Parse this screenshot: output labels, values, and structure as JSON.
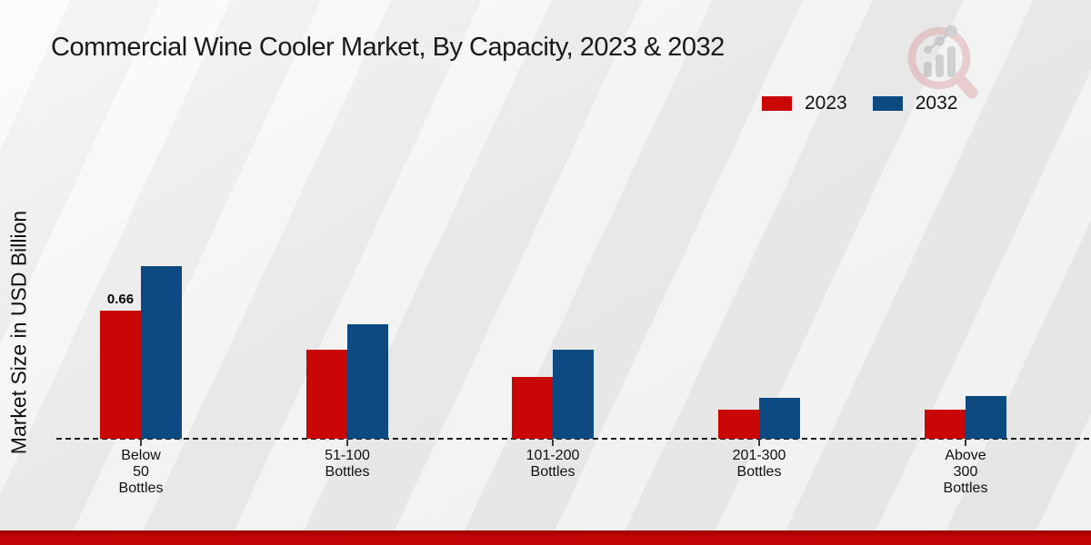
{
  "title": "Commercial Wine Cooler Market, By Capacity, 2023 & 2032",
  "ylabel": "Market Size in USD Billion",
  "colors": {
    "series_2023": "#c90707",
    "series_2032": "#0d4a82",
    "footer_bar": "#c40505",
    "baseline": "#1c1c1c"
  },
  "legend": {
    "position": "top-right",
    "items": [
      {
        "label": "2023",
        "color": "#c90707"
      },
      {
        "label": "2032",
        "color": "#0d4a82"
      }
    ]
  },
  "watermark_icon": "magnifier-bar-chart-logo",
  "chart_data": {
    "type": "bar",
    "title": "Commercial Wine Cooler Market, By Capacity, 2023 & 2032",
    "xlabel": "",
    "ylabel": "Market Size in USD Billion",
    "ylim": [
      0,
      1.0
    ],
    "grid": false,
    "baseline_style": "dashed",
    "legend_position": "top-right",
    "categories": [
      "Below\n50\nBottles",
      "51-100\nBottles",
      "101-200\nBottles",
      "201-300\nBottles",
      "Above\n300\nBottles"
    ],
    "series": [
      {
        "name": "2023",
        "color": "#c90707",
        "values": [
          0.66,
          0.46,
          0.32,
          0.15,
          0.15
        ]
      },
      {
        "name": "2032",
        "color": "#0d4a82",
        "values": [
          0.89,
          0.59,
          0.46,
          0.21,
          0.22
        ]
      }
    ],
    "annotations": [
      {
        "series_index": 0,
        "category_index": 0,
        "text": "0.66"
      }
    ]
  }
}
